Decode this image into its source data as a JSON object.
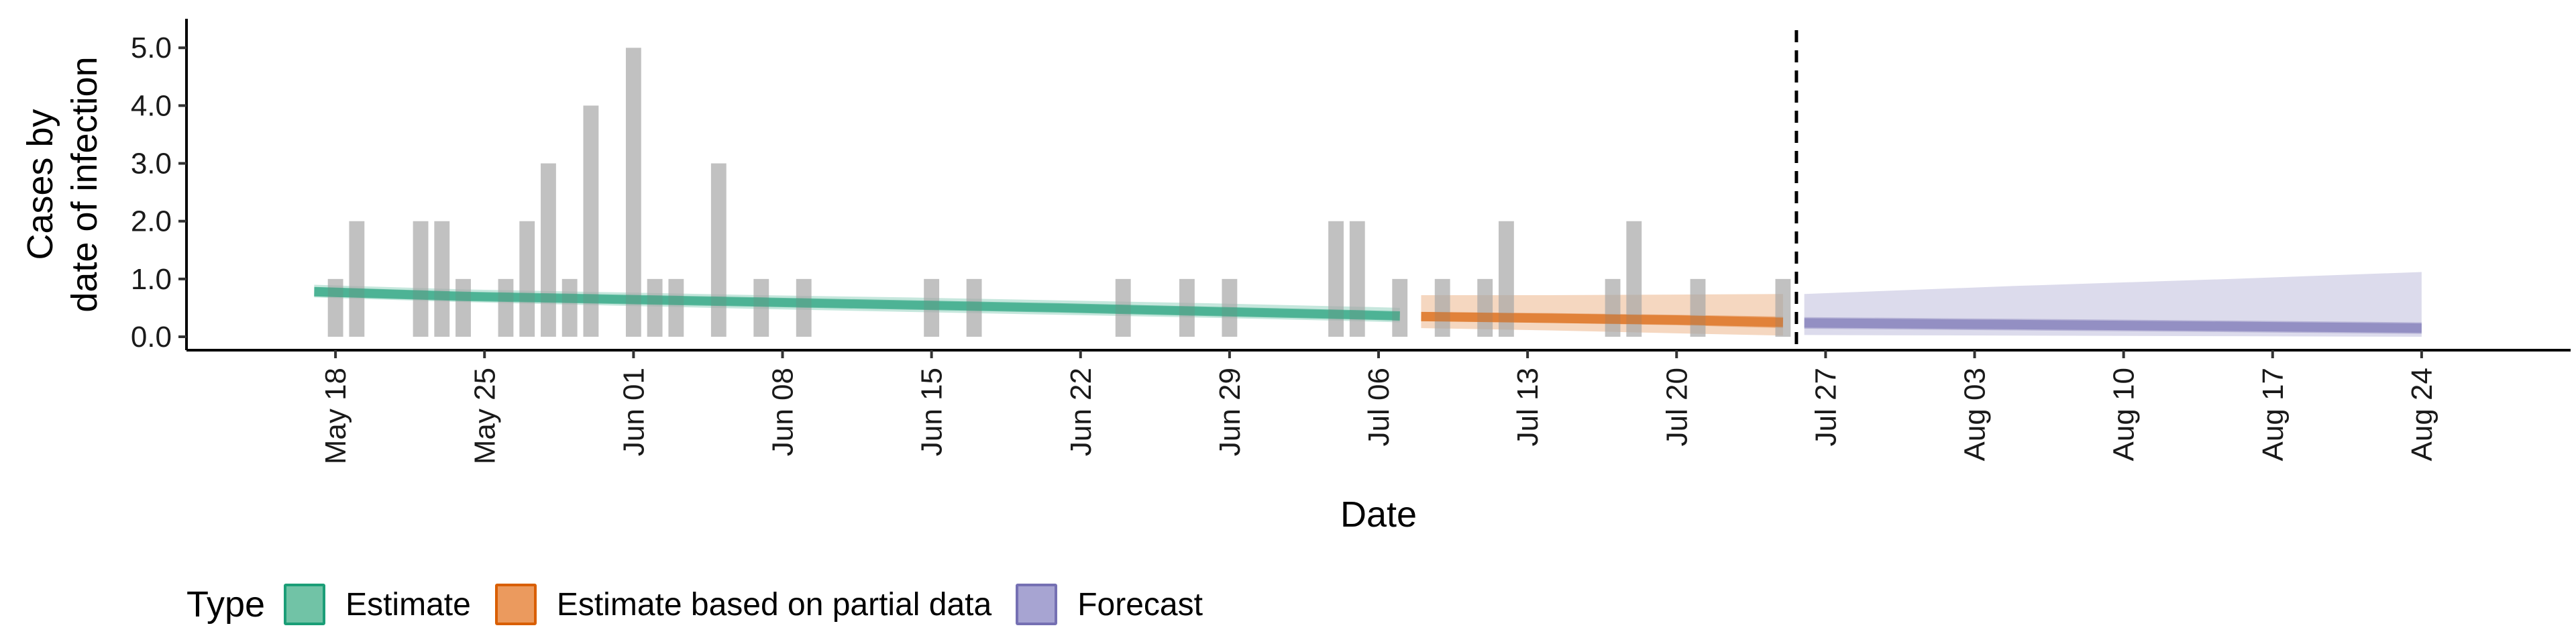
{
  "chart_data": {
    "type": "bar",
    "title": "",
    "xlabel": "Date",
    "ylabel_line1": "Cases by",
    "ylabel_line2": "date of infection",
    "yticks": [
      0.0,
      1.0,
      2.0,
      3.0,
      4.0,
      5.0
    ],
    "ytick_labels": [
      "0.0",
      "1.0",
      "2.0",
      "3.0",
      "4.0",
      "5.0"
    ],
    "ylim": [
      0,
      5.2
    ],
    "xlim": [
      "2020-05-11",
      "2020-08-31"
    ],
    "xtick_dates": [
      "2020-05-18",
      "2020-05-25",
      "2020-06-01",
      "2020-06-08",
      "2020-06-15",
      "2020-06-22",
      "2020-06-29",
      "2020-07-06",
      "2020-07-13",
      "2020-07-20",
      "2020-07-27",
      "2020-08-03",
      "2020-08-10",
      "2020-08-17",
      "2020-08-24"
    ],
    "xtick_labels": [
      "May 18",
      "May 25",
      "Jun 01",
      "Jun 08",
      "Jun 15",
      "Jun 22",
      "Jun 29",
      "Jul 06",
      "Jul 13",
      "Jul 20",
      "Jul 27",
      "Aug 03",
      "Aug 10",
      "Aug 17",
      "Aug 24"
    ],
    "reported_cases": {
      "x": [
        "2020-05-18",
        "2020-05-19",
        "2020-05-22",
        "2020-05-23",
        "2020-05-24",
        "2020-05-26",
        "2020-05-27",
        "2020-05-28",
        "2020-05-29",
        "2020-05-30",
        "2020-06-01",
        "2020-06-02",
        "2020-06-03",
        "2020-06-05",
        "2020-06-07",
        "2020-06-09",
        "2020-06-15",
        "2020-06-17",
        "2020-06-24",
        "2020-06-27",
        "2020-06-29",
        "2020-07-04",
        "2020-07-05",
        "2020-07-07",
        "2020-07-09",
        "2020-07-11",
        "2020-07-12",
        "2020-07-17",
        "2020-07-18",
        "2020-07-21",
        "2020-07-25"
      ],
      "values": [
        1,
        2,
        2,
        2,
        1,
        1,
        2,
        3,
        1,
        4,
        5,
        1,
        1,
        3,
        1,
        1,
        1,
        1,
        1,
        1,
        1,
        2,
        2,
        1,
        1,
        1,
        2,
        1,
        2,
        1,
        1
      ]
    },
    "series": [
      {
        "name": "Estimate",
        "color": "#1b9e77",
        "x": [
          "2020-05-17",
          "2020-05-24",
          "2020-05-31",
          "2020-06-07",
          "2020-06-14",
          "2020-06-21",
          "2020-06-28",
          "2020-07-05",
          "2020-07-07"
        ],
        "median": [
          0.78,
          0.7,
          0.65,
          0.6,
          0.55,
          0.5,
          0.44,
          0.38,
          0.36
        ],
        "inner_low": [
          0.7,
          0.63,
          0.58,
          0.53,
          0.48,
          0.43,
          0.37,
          0.31,
          0.29
        ],
        "inner_high": [
          0.86,
          0.77,
          0.72,
          0.67,
          0.62,
          0.57,
          0.51,
          0.45,
          0.43
        ],
        "outer_low": [
          0.68,
          0.6,
          0.54,
          0.48,
          0.43,
          0.38,
          0.33,
          0.27,
          0.25
        ],
        "outer_high": [
          0.9,
          0.82,
          0.77,
          0.72,
          0.68,
          0.63,
          0.58,
          0.52,
          0.5
        ]
      },
      {
        "name": "Estimate based on partial data",
        "color": "#d95f02",
        "x": [
          "2020-07-08",
          "2020-07-14",
          "2020-07-20",
          "2020-07-25"
        ],
        "median": [
          0.35,
          0.32,
          0.29,
          0.25
        ],
        "inner_low": [
          0.27,
          0.24,
          0.2,
          0.15
        ],
        "inner_high": [
          0.43,
          0.41,
          0.38,
          0.35
        ],
        "outer_low": [
          0.15,
          0.11,
          0.06,
          0.02
        ],
        "outer_high": [
          0.72,
          0.72,
          0.73,
          0.74
        ]
      },
      {
        "name": "Forecast",
        "color": "#7570b3",
        "x": [
          "2020-07-26",
          "2020-08-05",
          "2020-08-15",
          "2020-08-24"
        ],
        "median": [
          0.24,
          0.21,
          0.18,
          0.15
        ],
        "inner_low": [
          0.14,
          0.11,
          0.08,
          0.05
        ],
        "inner_high": [
          0.34,
          0.31,
          0.28,
          0.25
        ],
        "outer_low": [
          0.03,
          0.02,
          0.01,
          0.0
        ],
        "outer_high": [
          0.74,
          0.88,
          1.0,
          1.12
        ]
      }
    ],
    "vline_date": "2020-07-25",
    "legend_position": "bottom"
  },
  "legend": {
    "title": "Type",
    "items": [
      {
        "label": "Estimate",
        "fill": "#71c3a6",
        "border": "#1b9e77"
      },
      {
        "label": "Estimate based on partial data",
        "fill": "#eb9a5e",
        "border": "#d95f02"
      },
      {
        "label": "Forecast",
        "fill": "#a7a4d2",
        "border": "#7570b3"
      }
    ]
  }
}
